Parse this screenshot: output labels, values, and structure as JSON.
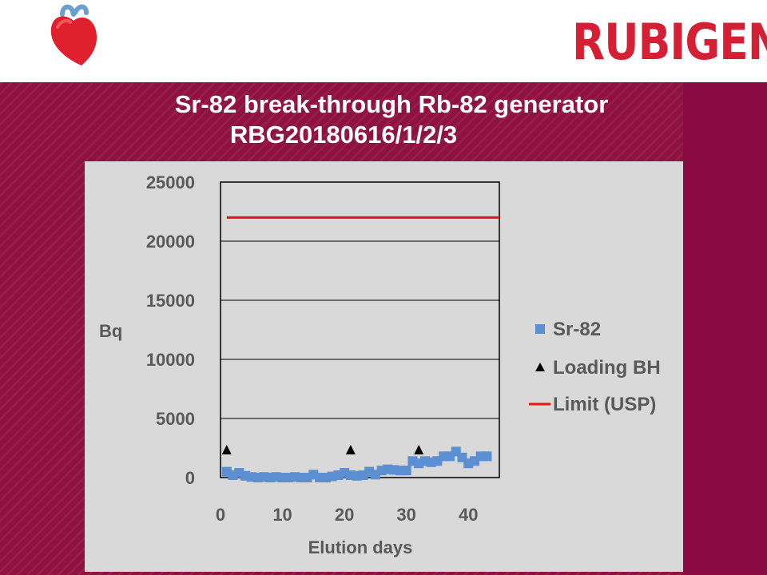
{
  "brand": "RUBIGEN",
  "colors": {
    "accent": "#d51f35",
    "background": "#8c0f3f",
    "sr82": "#5b8fd1",
    "limit": "#ee1111",
    "loading": "#000000"
  },
  "title": {
    "line1": "Sr-82 break-through Rb-82 generator",
    "line2": "RBG20180616/1/2/3"
  },
  "icons": {
    "logo": "heart-icon"
  },
  "chart_data": {
    "type": "scatter",
    "xlabel": "Elution days",
    "ylabel": "Bq",
    "xlim": [
      0,
      45
    ],
    "ylim": [
      0,
      25000
    ],
    "xticks": [
      0,
      10,
      20,
      30,
      40
    ],
    "yticks": [
      0,
      5000,
      10000,
      15000,
      20000,
      25000
    ],
    "grid": "horizontal",
    "legend_position": "right",
    "series": [
      {
        "name": "Sr-82",
        "marker": "square",
        "x": [
          1,
          2,
          3,
          4,
          5,
          6,
          7,
          8,
          9,
          10,
          11,
          12,
          13,
          14,
          15,
          16,
          17,
          18,
          19,
          20,
          21,
          22,
          23,
          24,
          25,
          26,
          27,
          28,
          29,
          30,
          31,
          32,
          33,
          34,
          35,
          36,
          37,
          38,
          39,
          40,
          41,
          42,
          43
        ],
        "y": [
          500,
          200,
          400,
          150,
          50,
          0,
          50,
          0,
          50,
          0,
          0,
          50,
          0,
          0,
          250,
          0,
          0,
          100,
          200,
          400,
          200,
          150,
          200,
          500,
          250,
          600,
          700,
          650,
          600,
          600,
          1400,
          1200,
          1400,
          1300,
          1400,
          1800,
          1800,
          2200,
          1700,
          1200,
          1400,
          1800,
          1800
        ]
      },
      {
        "name": "Loading BH",
        "marker": "triangle",
        "x": [
          1,
          21,
          32
        ],
        "y": [
          2300,
          2300,
          2300
        ]
      },
      {
        "name": "Limit (USP)",
        "marker": "line",
        "x": [
          1,
          45
        ],
        "y": [
          22000,
          22000
        ]
      }
    ]
  }
}
